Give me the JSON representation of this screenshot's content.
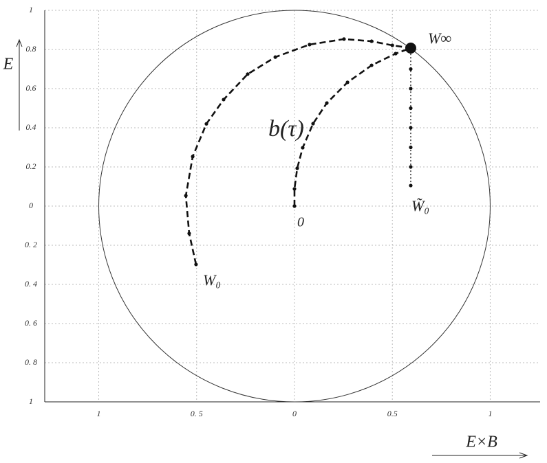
{
  "chart_data": {
    "type": "line",
    "xlabel": "E×B",
    "ylabel": "E",
    "xlim": [
      -1.276,
      1.255
    ],
    "ylim": [
      -1,
      1
    ],
    "xticks": [
      {
        "value": -1,
        "label": "1"
      },
      {
        "value": -0.5,
        "label": "0. 5"
      },
      0,
      0.5,
      1
    ],
    "yticks": [
      1,
      0.8,
      0.6,
      0.4,
      0.2,
      0,
      {
        "value": -0.2,
        "label": "0. 2"
      },
      {
        "value": -0.4,
        "label": "0. 4"
      },
      {
        "value": -0.6,
        "label": "0. 6"
      },
      {
        "value": -0.8,
        "label": "0. 8"
      },
      {
        "value": -1,
        "label": "1"
      }
    ],
    "grid": true,
    "series": [
      {
        "color": "#111",
        "style": "dashed",
        "x": [
          -0.503,
          -0.538,
          -0.555,
          -0.52,
          -0.45,
          -0.362,
          -0.239,
          -0.098,
          0.077,
          0.253,
          0.394,
          0.5,
          0.594
        ],
        "values": [
          -0.298,
          -0.14,
          0.053,
          0.253,
          0.42,
          0.544,
          0.674,
          0.761,
          0.825,
          0.853,
          0.842,
          0.821,
          0.807
        ]
      },
      {
        "color": "#111",
        "style": "dashed",
        "x": [
          0,
          0,
          0.014,
          0.042,
          0.095,
          0.165,
          0.271,
          0.394,
          0.517,
          0.594
        ],
        "values": [
          0,
          0.088,
          0.193,
          0.298,
          0.421,
          0.526,
          0.632,
          0.719,
          0.779,
          0.807
        ]
      },
      {
        "color": "#111",
        "style": "dotted",
        "x": [
          0.594,
          0.594,
          0.594,
          0.594,
          0.594,
          0.594,
          0.594,
          0.594
        ],
        "values": [
          0.105,
          0.2,
          0.3,
          0.4,
          0.5,
          0.6,
          0.7,
          0.807
        ]
      }
    ],
    "annotations": [
      "W∞",
      "b(τ)",
      "0",
      "W̃₀",
      "W₀"
    ]
  }
}
